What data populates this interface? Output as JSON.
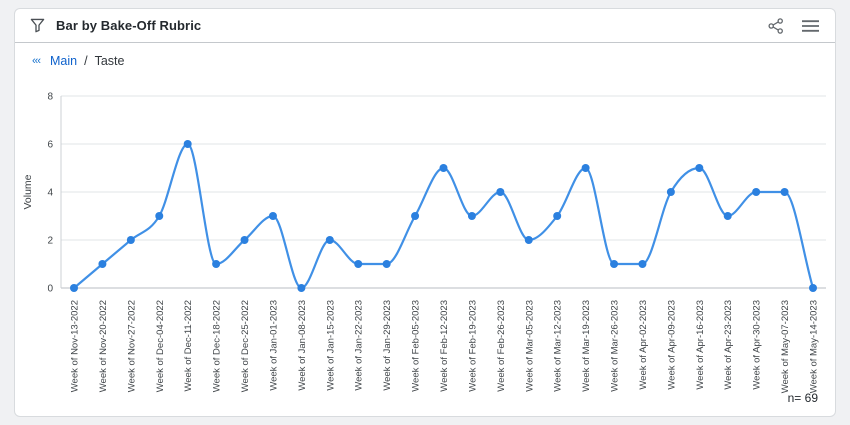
{
  "header": {
    "title": "Bar by Bake-Off Rubric"
  },
  "breadcrumb": {
    "back_chevrons": "‹‹‹",
    "root": "Main",
    "separator": "/",
    "current": "Taste"
  },
  "footer": {
    "n_label": "n= 69"
  },
  "colors": {
    "line": "#4090e6",
    "marker": "#2b80df",
    "link_blue": "#0f62cc",
    "grid": "#e1e4e7",
    "axis_line": "#b9bec3",
    "left_axis_line": "#ccd0d4",
    "tick_text": "#3f4448",
    "title_text": "#24292e",
    "icon_gray": "#595f66"
  },
  "chart_data": {
    "type": "line",
    "title": "",
    "xlabel": "",
    "ylabel": "Volume",
    "ylim": [
      0,
      8
    ],
    "yticks": [
      0,
      2,
      4,
      6,
      8
    ],
    "grid": true,
    "legend": false,
    "n": 69,
    "categories": [
      "Week of Nov-13-2022",
      "Week of Nov-20-2022",
      "Week of Nov-27-2022",
      "Week of Dec-04-2022",
      "Week of Dec-11-2022",
      "Week of Dec-18-2022",
      "Week of Dec-25-2022",
      "Week of Jan-01-2023",
      "Week of Jan-08-2023",
      "Week of Jan-15-2023",
      "Week of Jan-22-2023",
      "Week of Jan-29-2023",
      "Week of Feb-05-2023",
      "Week of Feb-12-2023",
      "Week of Feb-19-2023",
      "Week of Feb-26-2023",
      "Week of Mar-05-2023",
      "Week of Mar-12-2023",
      "Week of Mar-19-2023",
      "Week of Mar-26-2023",
      "Week of Apr-02-2023",
      "Week of Apr-09-2023",
      "Week of Apr-16-2023",
      "Week of Apr-23-2023",
      "Week of Apr-30-2023",
      "Week of May-07-2023",
      "Week of May-14-2023"
    ],
    "values": [
      0,
      1,
      2,
      3,
      6,
      1,
      2,
      3,
      0,
      2,
      1,
      1,
      3,
      5,
      3,
      4,
      2,
      3,
      5,
      1,
      1,
      4,
      5,
      3,
      4,
      4,
      0
    ]
  }
}
